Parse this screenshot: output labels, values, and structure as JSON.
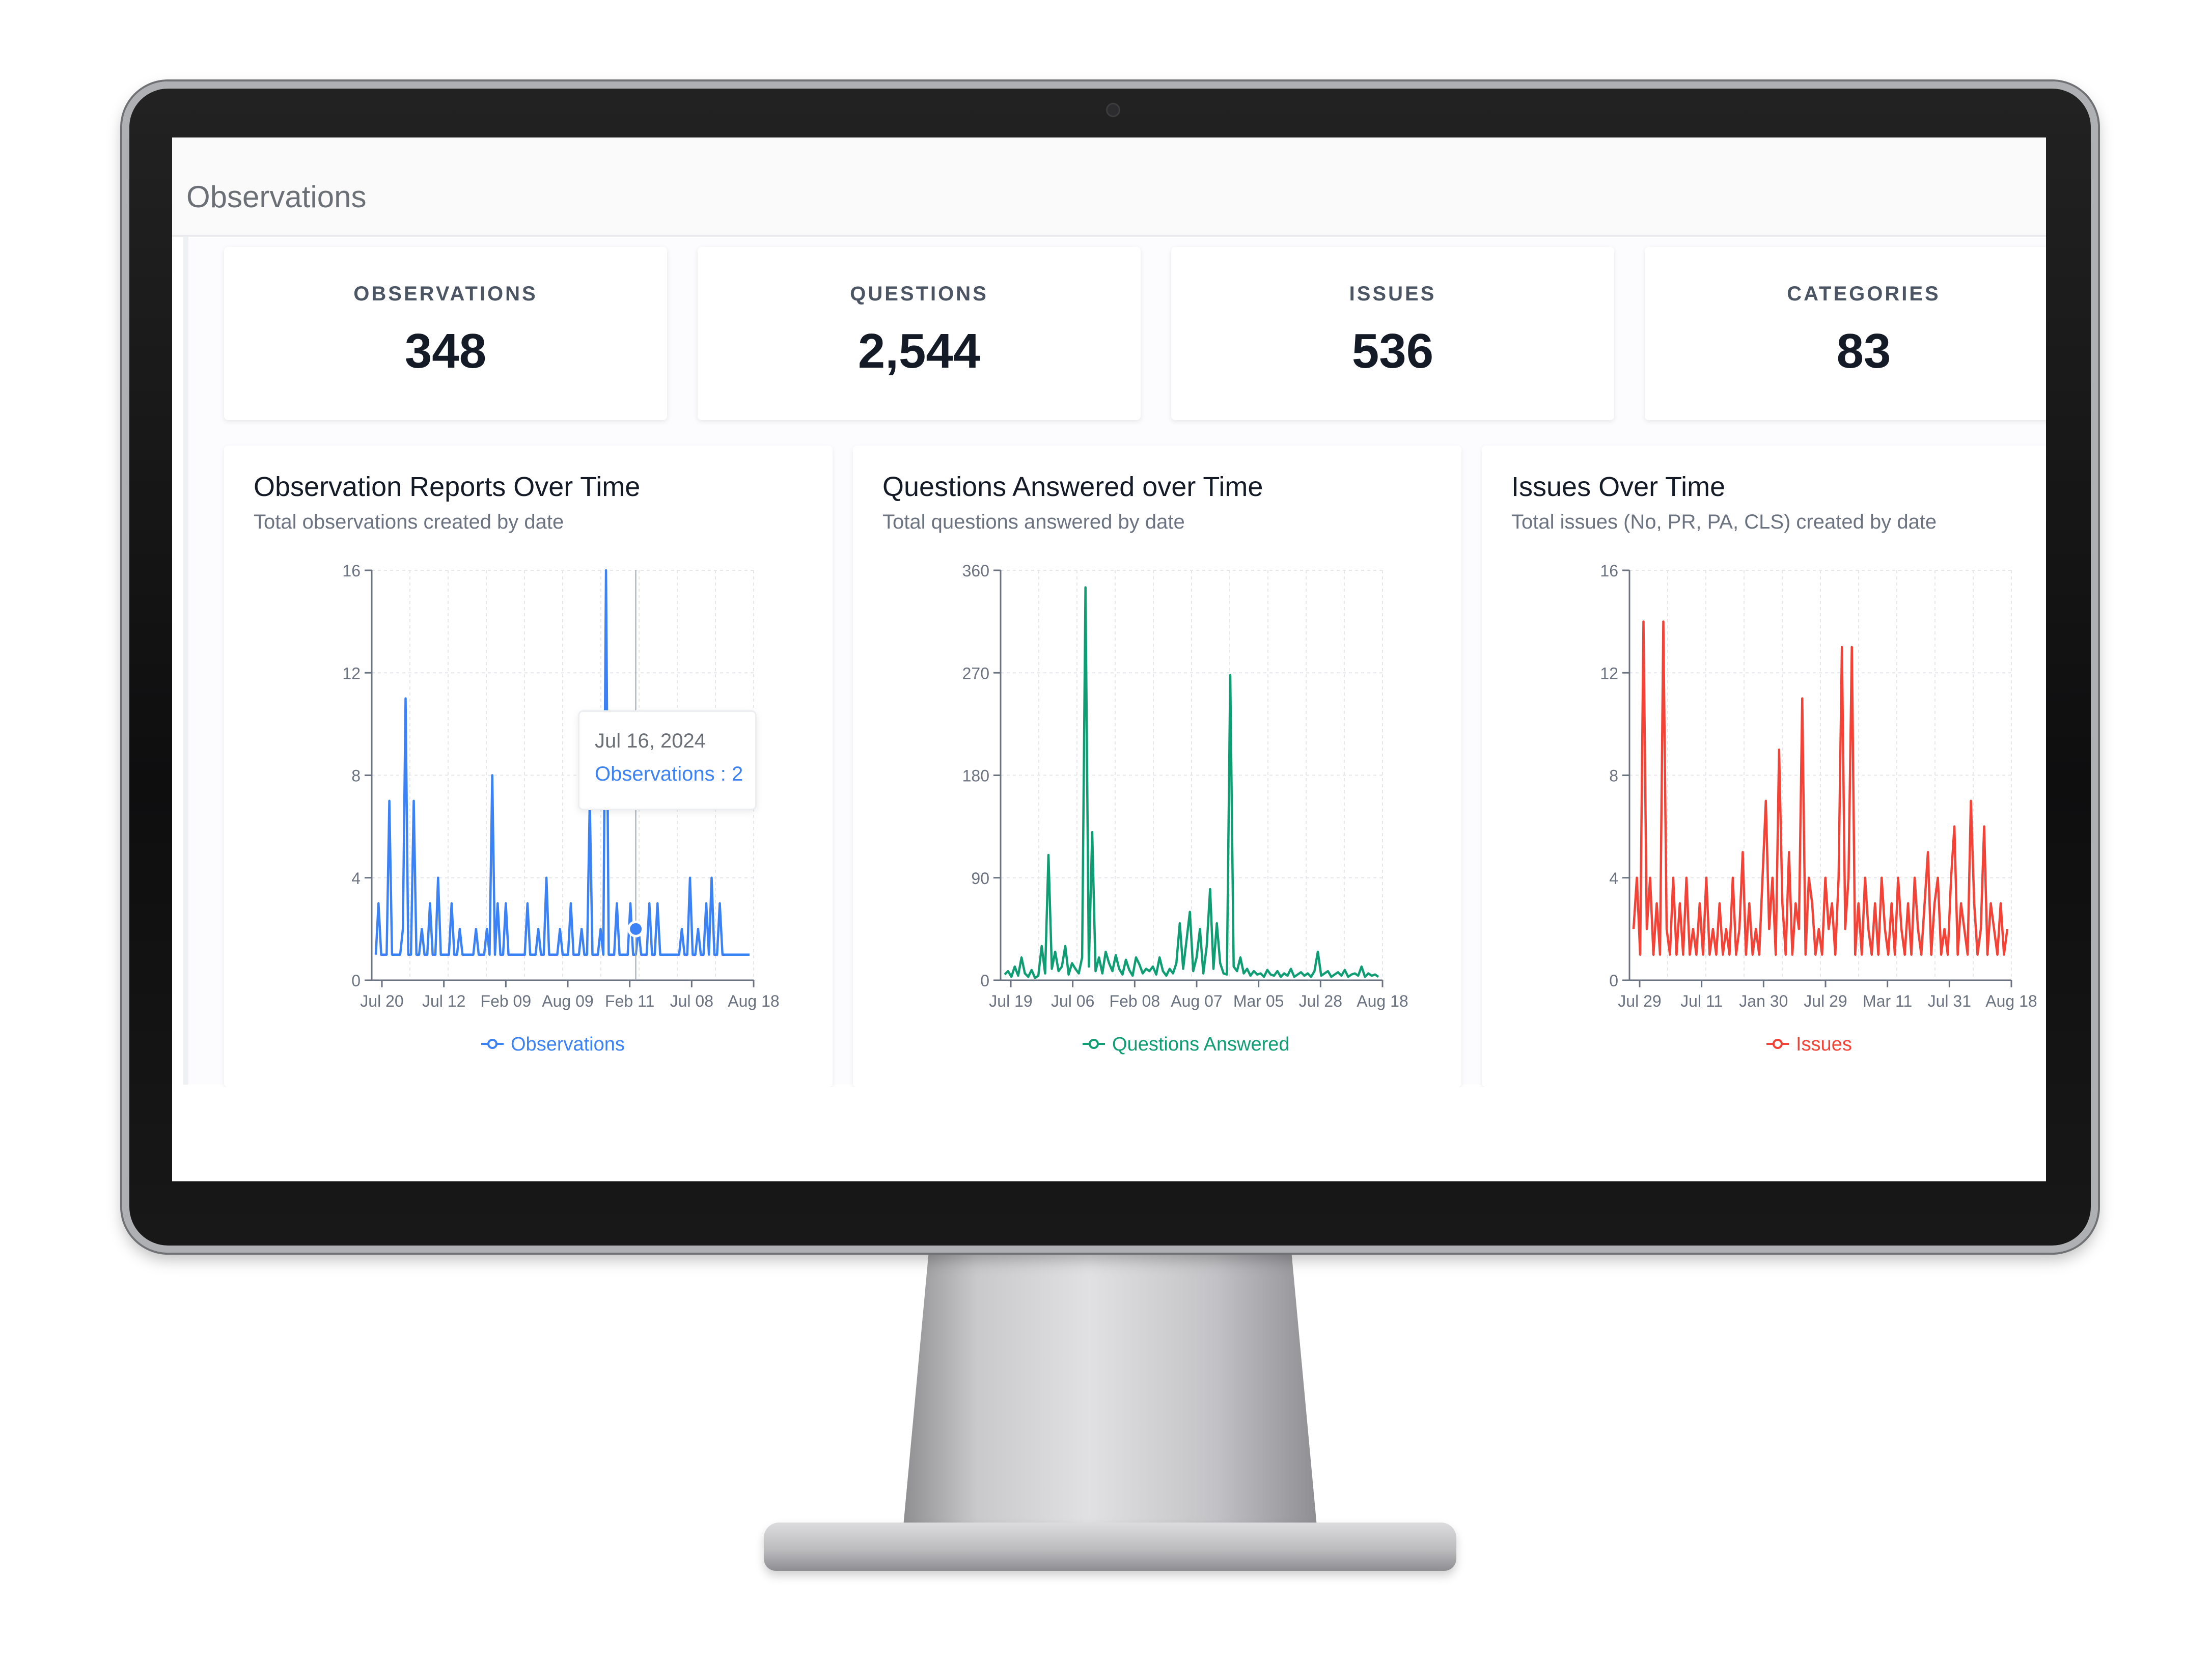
{
  "header": {
    "title": "Observations"
  },
  "stats": [
    {
      "label": "OBSERVATIONS",
      "value": "348"
    },
    {
      "label": "QUESTIONS",
      "value": "2,544"
    },
    {
      "label": "ISSUES",
      "value": "536"
    },
    {
      "label": "CATEGORIES",
      "value": "83"
    }
  ],
  "tooltip": {
    "date": "Jul 16, 2024",
    "text": "Observations : 2"
  },
  "chart_data": [
    {
      "type": "line",
      "title": "Observation Reports Over Time",
      "subtitle": "Total observations created by date",
      "color": "#3b82f6",
      "legend": "Observations",
      "legend_position": "bottom",
      "ylim": [
        0,
        16
      ],
      "yticks": [
        "0",
        "4",
        "8",
        "12",
        "16"
      ],
      "xticks": [
        "Jul 20",
        "Jul 12",
        "Feb 09",
        "Aug 09",
        "Feb 11",
        "Jul 08",
        "Aug 18"
      ],
      "grid": true,
      "values": [
        1,
        3,
        1,
        1,
        1,
        7,
        1,
        1,
        1,
        1,
        2,
        11,
        1,
        1,
        7,
        1,
        1,
        2,
        1,
        1,
        3,
        1,
        1,
        4,
        1,
        1,
        1,
        1,
        3,
        1,
        1,
        2,
        1,
        1,
        1,
        1,
        1,
        2,
        1,
        1,
        1,
        2,
        1,
        8,
        1,
        3,
        1,
        1,
        3,
        1,
        1,
        1,
        1,
        1,
        1,
        1,
        3,
        1,
        1,
        1,
        2,
        1,
        1,
        4,
        1,
        1,
        1,
        1,
        2,
        1,
        1,
        1,
        3,
        1,
        1,
        1,
        2,
        1,
        1,
        7,
        1,
        1,
        1,
        2,
        1,
        16,
        1,
        1,
        1,
        3,
        1,
        1,
        1,
        1,
        3,
        1,
        1,
        2,
        1,
        1,
        1,
        3,
        1,
        1,
        3,
        1,
        1,
        1,
        1,
        1,
        1,
        1,
        1,
        2,
        1,
        1,
        4,
        1,
        1,
        2,
        1,
        1,
        3,
        1,
        4,
        1,
        1,
        3,
        1,
        1,
        1,
        1,
        1,
        1,
        1,
        1,
        1,
        1,
        1
      ]
    },
    {
      "type": "line",
      "title": "Questions Answered over Time",
      "subtitle": "Total questions answered by date",
      "color": "#0f9d74",
      "legend": "Questions Answered",
      "legend_position": "bottom",
      "ylim": [
        0,
        360
      ],
      "yticks": [
        "0",
        "90",
        "180",
        "270",
        "360"
      ],
      "xticks": [
        "Jul 19",
        "Jul 06",
        "Feb 08",
        "Aug 07",
        "Mar 05",
        "Jul 28",
        "Aug 18"
      ],
      "grid": true,
      "values": [
        5,
        8,
        3,
        12,
        4,
        20,
        6,
        3,
        9,
        2,
        4,
        30,
        6,
        110,
        10,
        25,
        8,
        12,
        30,
        5,
        15,
        10,
        6,
        20,
        345,
        12,
        130,
        8,
        20,
        6,
        25,
        15,
        8,
        22,
        10,
        5,
        18,
        9,
        4,
        20,
        14,
        6,
        10,
        8,
        12,
        5,
        20,
        8,
        4,
        10,
        6,
        15,
        50,
        10,
        35,
        60,
        8,
        20,
        45,
        6,
        30,
        80,
        10,
        50,
        15,
        6,
        5,
        268,
        12,
        8,
        20,
        6,
        10,
        4,
        8,
        5,
        6,
        3,
        9,
        5,
        4,
        8,
        3,
        6,
        4,
        10,
        3,
        5,
        7,
        4,
        6,
        3,
        8,
        25,
        4,
        6,
        8,
        3,
        5,
        7,
        4,
        9,
        3,
        5,
        6,
        4,
        12,
        3,
        6,
        4,
        5,
        3
      ]
    },
    {
      "type": "line",
      "title": "Issues Over Time",
      "subtitle": "Total issues (No, PR, PA, CLS) created by date",
      "color": "#f44336",
      "legend": "Issues",
      "legend_position": "bottom",
      "ylim": [
        0,
        16
      ],
      "yticks": [
        "0",
        "4",
        "8",
        "12",
        "16"
      ],
      "xticks": [
        "Jul 29",
        "Jul 11",
        "Jan 30",
        "Jul 29",
        "Mar 11",
        "Jul 31",
        "Aug 18"
      ],
      "grid": true,
      "values": [
        2,
        4,
        1,
        14,
        2,
        4,
        1,
        3,
        1,
        14,
        2,
        1,
        4,
        1,
        3,
        1,
        4,
        1,
        2,
        1,
        3,
        1,
        4,
        1,
        2,
        1,
        3,
        1,
        2,
        1,
        4,
        1,
        2,
        5,
        1,
        3,
        1,
        2,
        1,
        4,
        7,
        2,
        4,
        1,
        9,
        3,
        1,
        5,
        1,
        3,
        2,
        11,
        1,
        4,
        3,
        1,
        2,
        1,
        4,
        2,
        3,
        1,
        4,
        13,
        2,
        4,
        13,
        1,
        3,
        1,
        4,
        2,
        1,
        3,
        1,
        4,
        2,
        1,
        3,
        1,
        4,
        2,
        1,
        3,
        1,
        4,
        2,
        1,
        3,
        5,
        1,
        3,
        4,
        1,
        2,
        1,
        4,
        6,
        1,
        3,
        2,
        1,
        7,
        3,
        1,
        2,
        6,
        1,
        3,
        2,
        1,
        3,
        1,
        2
      ]
    }
  ]
}
